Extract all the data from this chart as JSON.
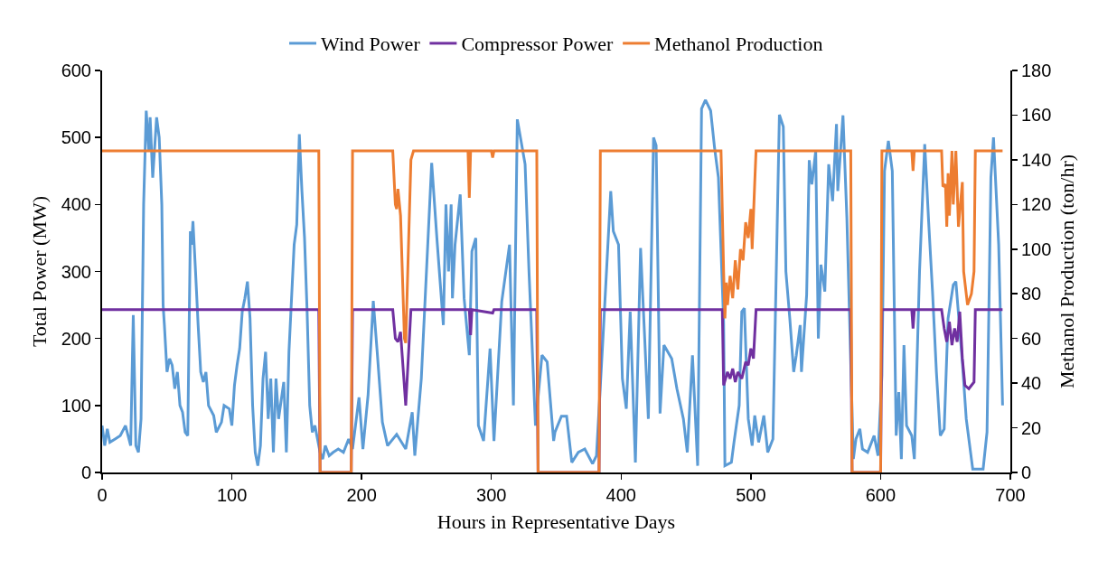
{
  "chart_data": {
    "type": "line",
    "xlabel": "Hours in Representative Days",
    "ylabel": "Total Power (MW)",
    "y2label": "Methanol Production (ton/hr)",
    "xlim": [
      0,
      700
    ],
    "xticks": [
      0,
      100,
      200,
      300,
      400,
      500,
      600,
      700
    ],
    "ylim": [
      0,
      600
    ],
    "yticks": [
      0,
      100,
      200,
      300,
      400,
      500,
      600
    ],
    "y2lim": [
      0,
      180
    ],
    "y2ticks": [
      0,
      20,
      40,
      60,
      80,
      100,
      120,
      140,
      160,
      180
    ],
    "grid": false,
    "legend": "top",
    "marker": "none",
    "line_style": "solid",
    "series": [
      {
        "name": "Wind Power",
        "color": "#5b9bd5",
        "x": [
          0,
          2,
          4,
          6,
          10,
          14,
          18,
          20,
          22,
          24,
          26,
          28,
          30,
          32,
          34,
          36,
          37,
          39,
          42,
          44,
          46,
          47,
          48,
          50,
          52,
          54,
          56,
          58,
          60,
          62,
          64,
          66,
          68,
          69,
          70,
          72,
          74,
          76,
          78,
          80,
          82,
          86,
          88,
          92,
          94,
          98,
          100,
          102,
          104,
          106,
          108,
          110,
          112,
          114,
          116,
          118,
          120,
          122,
          124,
          126,
          128,
          130,
          132,
          134,
          136,
          140,
          142,
          144,
          148,
          150,
          152,
          154,
          156,
          158,
          160,
          162,
          164,
          168,
          170,
          172,
          175,
          178,
          182,
          186,
          190,
          193,
          198,
          201,
          205,
          209,
          212,
          216,
          220,
          227,
          234,
          239,
          241,
          246,
          254,
          258,
          263,
          265,
          267,
          269,
          270,
          272,
          276,
          279,
          283,
          285,
          288,
          290,
          294,
          299,
          302,
          308,
          314,
          317,
          320,
          326,
          329,
          334,
          339,
          343,
          348,
          349,
          354,
          358,
          362,
          367,
          372,
          378,
          381,
          386,
          392,
          394,
          398,
          401,
          404,
          407,
          411,
          415,
          421,
          425,
          427,
          430,
          433,
          439,
          443,
          448,
          451,
          455,
          459,
          462,
          465,
          469,
          472,
          475,
          479,
          480,
          485,
          487,
          491,
          493,
          495,
          498,
          501,
          503,
          506,
          510,
          513,
          517,
          522,
          525,
          527,
          530,
          533,
          535,
          538,
          539,
          543,
          545,
          547,
          550,
          552,
          554,
          557,
          560,
          563,
          566,
          567,
          571,
          574,
          579,
          581,
          584,
          586,
          590,
          595,
          598,
          601,
          603,
          606,
          609,
          612,
          614,
          616,
          618,
          620,
          624,
          626,
          630,
          634,
          637,
          640,
          643,
          646,
          649,
          652,
          656,
          658,
          663,
          666,
          671,
          679,
          682,
          685,
          687,
          691,
          694
        ],
        "values": [
          70,
          40,
          65,
          45,
          50,
          55,
          70,
          55,
          40,
          235,
          40,
          30,
          80,
          400,
          540,
          480,
          530,
          440,
          530,
          500,
          400,
          250,
          220,
          150,
          170,
          160,
          125,
          150,
          100,
          90,
          60,
          55,
          360,
          340,
          375,
          300,
          220,
          150,
          135,
          150,
          100,
          85,
          60,
          75,
          100,
          95,
          70,
          130,
          160,
          185,
          240,
          260,
          285,
          230,
          100,
          30,
          10,
          40,
          140,
          180,
          80,
          140,
          30,
          140,
          80,
          135,
          30,
          180,
          340,
          370,
          505,
          420,
          350,
          240,
          100,
          60,
          70,
          30,
          20,
          40,
          25,
          30,
          35,
          30,
          50,
          35,
          112,
          35,
          116,
          256,
          180,
          75,
          40,
          57,
          35,
          90,
          25,
          140,
          462,
          350,
          220,
          400,
          300,
          400,
          260,
          340,
          415,
          260,
          175,
          330,
          350,
          70,
          47,
          185,
          47,
          255,
          340,
          100,
          527,
          460,
          300,
          70,
          175,
          165,
          47,
          60,
          84,
          84,
          15,
          30,
          35,
          13,
          25,
          200,
          420,
          360,
          340,
          140,
          95,
          240,
          15,
          335,
          80,
          500,
          488,
          88,
          190,
          170,
          125,
          80,
          30,
          175,
          10,
          543,
          556,
          540,
          485,
          440,
          225,
          10,
          15,
          45,
          100,
          240,
          245,
          80,
          40,
          85,
          45,
          85,
          30,
          50,
          534,
          516,
          300,
          230,
          150,
          175,
          220,
          150,
          265,
          466,
          430,
          480,
          200,
          310,
          270,
          460,
          405,
          520,
          420,
          533,
          380,
          20,
          50,
          65,
          35,
          30,
          55,
          25,
          145,
          450,
          495,
          450,
          55,
          120,
          20,
          190,
          70,
          55,
          20,
          300,
          490,
          375,
          270,
          150,
          55,
          65,
          230,
          280,
          285,
          165,
          80,
          5,
          5,
          60,
          440,
          500,
          340,
          100
        ]
      },
      {
        "name": "Compressor Power",
        "color": "#7030a0",
        "x": [
          0,
          167,
          168,
          192,
          193,
          224,
          226,
          228,
          230,
          234,
          238,
          283,
          284,
          285,
          301,
          302,
          335,
          336,
          383,
          384,
          478,
          479,
          482,
          484,
          486,
          488,
          490,
          493,
          496,
          498,
          500,
          502,
          504,
          577,
          578,
          600,
          601,
          624,
          625,
          626,
          647,
          649,
          651,
          653,
          655,
          657,
          659,
          661,
          663,
          665,
          668,
          672,
          673,
          694
        ],
        "values": [
          243,
          243,
          0,
          0,
          243,
          243,
          200,
          195,
          210,
          100,
          243,
          243,
          205,
          243,
          238,
          243,
          243,
          0,
          0,
          243,
          243,
          130,
          150,
          140,
          155,
          135,
          150,
          140,
          165,
          160,
          185,
          170,
          243,
          243,
          0,
          0,
          243,
          243,
          215,
          243,
          243,
          215,
          195,
          225,
          190,
          215,
          195,
          240,
          170,
          130,
          125,
          135,
          243,
          243
        ]
      },
      {
        "name": "Methanol Production",
        "color": "#ed7d31",
        "axis": "y2",
        "x": [
          0,
          167,
          168,
          192,
          193,
          224,
          226,
          227,
          228,
          230,
          233,
          234,
          238,
          240,
          282,
          283,
          284,
          300,
          301,
          302,
          335,
          336,
          383,
          384,
          477,
          479,
          480,
          481,
          482,
          484,
          486,
          488,
          490,
          492,
          494,
          496,
          498,
          500,
          501,
          503,
          504,
          577,
          578,
          600,
          601,
          624,
          625,
          626,
          647,
          648,
          650,
          651,
          652,
          653,
          655,
          656,
          658,
          660,
          663,
          664,
          667,
          670,
          672,
          673,
          694
        ],
        "values": [
          144,
          144,
          0,
          0,
          144,
          144,
          120,
          118,
          127,
          115,
          60,
          58,
          140,
          144,
          144,
          123,
          144,
          144,
          141,
          144,
          144,
          0,
          0,
          144,
          144,
          90,
          69,
          85,
          75,
          88,
          78,
          95,
          82,
          100,
          95,
          112,
          105,
          118,
          100,
          130,
          144,
          144,
          0,
          0,
          144,
          144,
          135,
          144,
          144,
          128,
          129,
          110,
          134,
          115,
          144,
          120,
          144,
          110,
          130,
          90,
          75,
          80,
          90,
          144,
          144
        ]
      }
    ]
  }
}
